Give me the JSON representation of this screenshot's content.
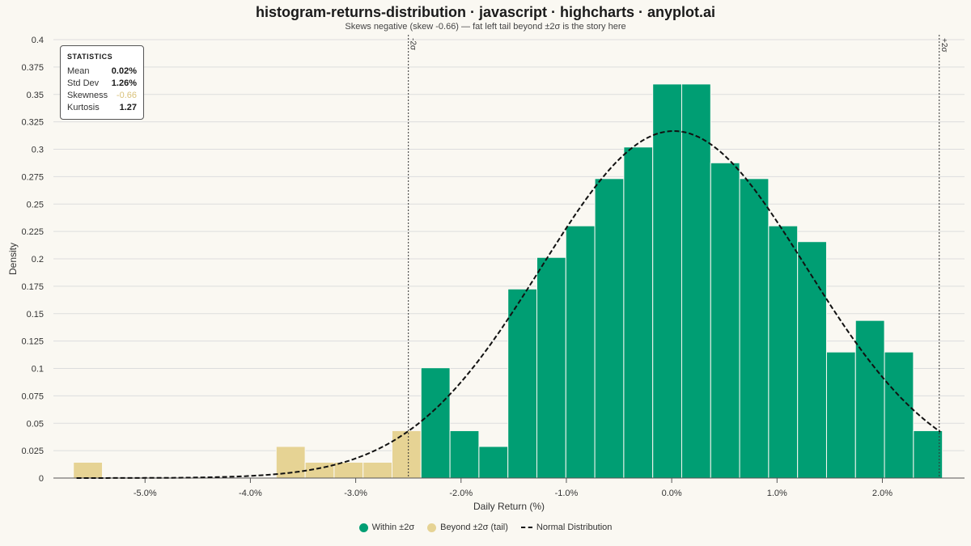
{
  "title": "histogram-returns-distribution · javascript · highcharts · anyplot.ai",
  "subtitle": "Skews negative (skew -0.66) — fat left tail beyond ±2σ is the story here",
  "stats": {
    "heading": "STATISTICS",
    "rows": [
      {
        "label": "Mean",
        "value": "0.02%"
      },
      {
        "label": "Std Dev",
        "value": "1.26%"
      },
      {
        "label": "Skewness",
        "value": "-0.66"
      },
      {
        "label": "Kurtosis",
        "value": "1.27"
      }
    ]
  },
  "legend": {
    "within": "Within ±2σ",
    "beyond": "Beyond ±2σ (tail)",
    "normal": "Normal Distribution"
  },
  "colors": {
    "within": "#009e73",
    "beyond": "#e6d394",
    "normal": "#111111",
    "grid": "#dddddd",
    "background": "#faf8f2"
  },
  "chart_data": {
    "type": "bar",
    "xlabel": "Daily Return (%)",
    "ylabel": "Density",
    "xlim": [
      -5.87,
      2.78
    ],
    "ylim": [
      0,
      0.4
    ],
    "xticks": [
      -5,
      -4,
      -3,
      -2,
      -1,
      0,
      1,
      2
    ],
    "xtick_labels": [
      "-5.0%",
      "-4.0%",
      "-3.0%",
      "-2.0%",
      "-1.0%",
      "0.0%",
      "1.0%",
      "2.0%"
    ],
    "yticks": [
      0,
      0.025,
      0.05,
      0.075,
      0.1,
      0.125,
      0.15,
      0.175,
      0.2,
      0.225,
      0.25,
      0.275,
      0.3,
      0.325,
      0.35,
      0.375,
      0.4
    ],
    "ytick_labels": [
      "0",
      "0.025",
      "0.05",
      "0.075",
      "0.1",
      "0.125",
      "0.15",
      "0.175",
      "0.2",
      "0.225",
      "0.25",
      "0.275",
      "0.3",
      "0.325",
      "0.35",
      "0.375",
      "0.4"
    ],
    "bin_width": 0.275,
    "bins": [
      {
        "x0": -5.68,
        "density": 0.0144,
        "tail": true
      },
      {
        "x0": -3.755,
        "density": 0.0288,
        "tail": true
      },
      {
        "x0": -3.48,
        "density": 0.0144,
        "tail": true
      },
      {
        "x0": -3.205,
        "density": 0.0144,
        "tail": true
      },
      {
        "x0": -2.93,
        "density": 0.0144,
        "tail": true
      },
      {
        "x0": -2.655,
        "density": 0.0432,
        "tail": true
      },
      {
        "x0": -2.38,
        "density": 0.1006,
        "tail": false
      },
      {
        "x0": -2.105,
        "density": 0.0432,
        "tail": false
      },
      {
        "x0": -1.83,
        "density": 0.0288,
        "tail": false
      },
      {
        "x0": -1.555,
        "density": 0.1725,
        "tail": false
      },
      {
        "x0": -1.28,
        "density": 0.2013,
        "tail": false
      },
      {
        "x0": -1.005,
        "density": 0.2301,
        "tail": false
      },
      {
        "x0": -0.73,
        "density": 0.2732,
        "tail": false
      },
      {
        "x0": -0.455,
        "density": 0.302,
        "tail": false
      },
      {
        "x0": -0.18,
        "density": 0.3595,
        "tail": false
      },
      {
        "x0": 0.095,
        "density": 0.3595,
        "tail": false
      },
      {
        "x0": 0.37,
        "density": 0.2876,
        "tail": false
      },
      {
        "x0": 0.645,
        "density": 0.2732,
        "tail": false
      },
      {
        "x0": 0.92,
        "density": 0.2301,
        "tail": false
      },
      {
        "x0": 1.195,
        "density": 0.2157,
        "tail": false
      },
      {
        "x0": 1.47,
        "density": 0.115,
        "tail": false
      },
      {
        "x0": 1.745,
        "density": 0.1438,
        "tail": false
      },
      {
        "x0": 2.02,
        "density": 0.115,
        "tail": false
      },
      {
        "x0": 2.295,
        "density": 0.0432,
        "tail": false
      }
    ],
    "normal_curve": {
      "mean": 0.02,
      "std": 1.26,
      "x_range": [
        -5.65,
        2.55
      ]
    },
    "reference_lines": [
      {
        "x": -2.5,
        "label": "-2σ"
      },
      {
        "x": 2.54,
        "label": "+2σ"
      }
    ],
    "grid": true,
    "legend_position": "bottom-center"
  }
}
